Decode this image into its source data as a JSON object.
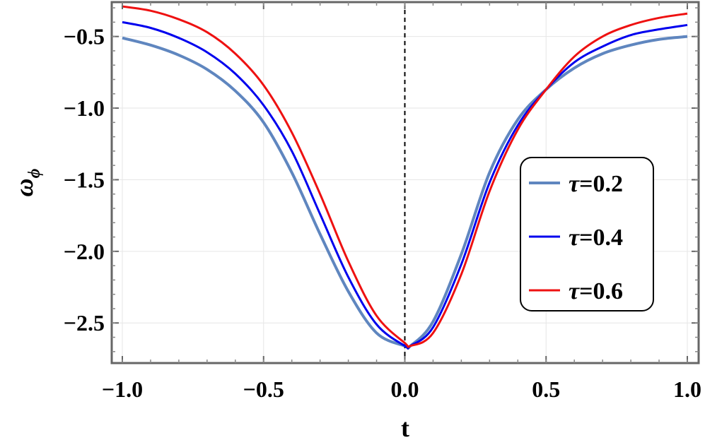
{
  "chart_data": {
    "type": "line",
    "xlabel": "t",
    "ylabel": {
      "base": "ω",
      "sub": "ϕ"
    },
    "xlim": [
      -1.0,
      1.0
    ],
    "ylim": [
      -2.78,
      -0.26
    ],
    "x_ticks": [
      -1.0,
      -0.5,
      0.0,
      0.5,
      1.0
    ],
    "x_tick_labels": [
      "−1.0",
      "−0.5",
      "0.0",
      "0.5",
      "1.0"
    ],
    "y_ticks": [
      -0.5,
      -1.0,
      -1.5,
      -2.0,
      -2.5
    ],
    "y_tick_labels": [
      "−0.5",
      "−1.0",
      "−1.5",
      "−2.0",
      "−2.5"
    ],
    "grid": true,
    "vertical_reference_line": {
      "x": 0.0,
      "style": "dashed"
    },
    "legend_position": "right",
    "x": [
      -1.0,
      -0.9,
      -0.8,
      -0.7,
      -0.6,
      -0.5,
      -0.4,
      -0.3,
      -0.2,
      -0.1,
      0.0,
      0.02,
      0.1,
      0.2,
      0.3,
      0.4,
      0.5,
      0.6,
      0.7,
      0.8,
      0.9,
      1.0
    ],
    "series": [
      {
        "legend_symbol": "τ",
        "legend_value": "=0.2",
        "color": "#5f86bf",
        "values": [
          -0.51,
          -0.56,
          -0.63,
          -0.73,
          -0.88,
          -1.1,
          -1.45,
          -1.88,
          -2.28,
          -2.57,
          -2.66,
          -2.66,
          -2.49,
          -2.02,
          -1.45,
          -1.08,
          -0.87,
          -0.72,
          -0.62,
          -0.56,
          -0.52,
          -0.5
        ]
      },
      {
        "legend_symbol": "τ",
        "legend_value": "=0.4",
        "color": "#0000ee",
        "values": [
          -0.4,
          -0.44,
          -0.51,
          -0.61,
          -0.76,
          -0.98,
          -1.3,
          -1.74,
          -2.18,
          -2.51,
          -2.66,
          -2.66,
          -2.53,
          -2.09,
          -1.52,
          -1.12,
          -0.87,
          -0.68,
          -0.57,
          -0.49,
          -0.45,
          -0.42
        ]
      },
      {
        "legend_symbol": "τ",
        "legend_value": "=0.6",
        "color": "#ee1111",
        "values": [
          -0.29,
          -0.32,
          -0.38,
          -0.47,
          -0.62,
          -0.84,
          -1.17,
          -1.6,
          -2.07,
          -2.45,
          -2.64,
          -2.66,
          -2.57,
          -2.16,
          -1.58,
          -1.15,
          -0.87,
          -0.64,
          -0.5,
          -0.42,
          -0.37,
          -0.34
        ]
      }
    ]
  }
}
